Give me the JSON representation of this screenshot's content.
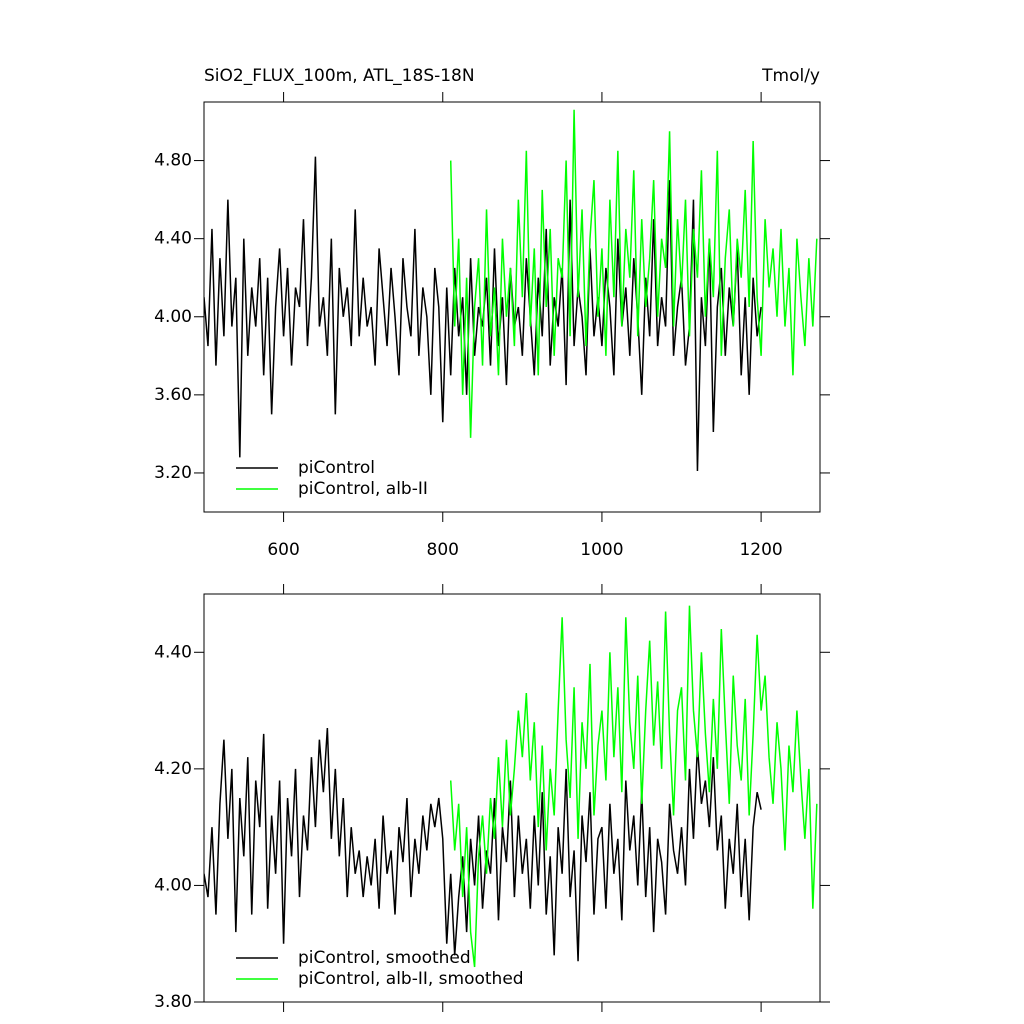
{
  "chart_data": [
    {
      "type": "line",
      "title": "SiO2_FLUX_100m, ATL_18S-18N",
      "unit_label": "Tmol/y",
      "xlim": [
        500,
        1274
      ],
      "ylim": [
        3.0,
        5.1
      ],
      "xticks": [
        600,
        800,
        1000,
        1200
      ],
      "yticks": [
        {
          "value": 3.2,
          "label": "3.20"
        },
        {
          "value": 3.6,
          "label": "3.60"
        },
        {
          "value": 4.0,
          "label": "4.00"
        },
        {
          "value": 4.4,
          "label": "4.40"
        },
        {
          "value": 4.8,
          "label": "4.80"
        }
      ],
      "legend": "lower left",
      "x": [
        500,
        505,
        510,
        515,
        520,
        525,
        530,
        535,
        540,
        545,
        550,
        555,
        560,
        565,
        570,
        575,
        580,
        585,
        590,
        595,
        600,
        605,
        610,
        615,
        620,
        625,
        630,
        635,
        640,
        645,
        650,
        655,
        660,
        665,
        670,
        675,
        680,
        685,
        690,
        695,
        700,
        705,
        710,
        715,
        720,
        725,
        730,
        735,
        740,
        745,
        750,
        755,
        760,
        765,
        770,
        775,
        780,
        785,
        790,
        795,
        800,
        805,
        810,
        815,
        820,
        825,
        830,
        835,
        840,
        845,
        850,
        855,
        860,
        865,
        870,
        875,
        880,
        885,
        890,
        895,
        900,
        905,
        910,
        915,
        920,
        925,
        930,
        935,
        940,
        945,
        950,
        955,
        960,
        965,
        970,
        975,
        980,
        985,
        990,
        995,
        1000,
        1005,
        1010,
        1015,
        1020,
        1025,
        1030,
        1035,
        1040,
        1045,
        1050,
        1055,
        1060,
        1065,
        1070,
        1075,
        1080,
        1085,
        1090,
        1095,
        1100,
        1105,
        1110,
        1115,
        1120,
        1125,
        1130,
        1135,
        1140,
        1145,
        1150,
        1155,
        1160,
        1165,
        1170,
        1175,
        1180,
        1185,
        1190,
        1195,
        1200,
        1205,
        1210,
        1215,
        1220,
        1225,
        1230,
        1235,
        1240,
        1245,
        1250,
        1255,
        1260,
        1265,
        1270
      ],
      "series": [
        {
          "name": "piControl",
          "color": "#000000",
          "values": [
            4.1,
            3.85,
            4.45,
            3.75,
            4.3,
            3.9,
            4.6,
            3.95,
            4.2,
            3.28,
            4.4,
            3.8,
            4.15,
            3.95,
            4.3,
            3.7,
            4.2,
            3.5,
            4.05,
            4.35,
            3.9,
            4.25,
            3.75,
            4.15,
            4.05,
            4.5,
            3.85,
            4.2,
            4.82,
            3.95,
            4.1,
            3.8,
            4.4,
            3.5,
            4.25,
            4.0,
            4.15,
            3.85,
            4.55,
            3.9,
            4.2,
            3.95,
            4.05,
            3.75,
            4.35,
            4.1,
            3.85,
            4.25,
            4.0,
            3.7,
            4.3,
            4.05,
            3.9,
            4.45,
            3.8,
            4.15,
            4.0,
            3.6,
            4.25,
            4.05,
            3.46,
            4.15,
            3.7,
            4.25,
            3.9,
            4.1,
            3.6,
            4.3,
            3.8,
            4.05,
            3.95,
            4.2,
            3.75,
            4.35,
            3.85,
            4.1,
            3.65,
            4.25,
            3.95,
            4.05,
            3.8,
            4.3,
            4.0,
            3.7,
            4.2,
            3.9,
            4.45,
            3.75,
            4.1,
            3.95,
            4.25,
            3.65,
            4.6,
            3.85,
            4.15,
            4.0,
            3.7,
            4.35,
            3.9,
            4.1,
            3.85,
            4.25,
            4.05,
            3.7,
            4.4,
            3.95,
            4.15,
            3.8,
            4.3,
            4.0,
            3.6,
            4.2,
            3.9,
            4.5,
            3.85,
            4.1,
            3.95,
            4.7,
            3.8,
            4.05,
            4.2,
            3.75,
            3.95,
            4.6,
            3.21,
            4.1,
            3.85,
            4.4,
            3.41,
            4.05,
            4.25,
            3.8,
            4.15,
            3.95,
            4.35,
            3.7,
            4.1,
            3.6,
            4.2,
            3.9,
            4.05,
            null,
            null,
            null,
            null,
            null,
            null,
            null,
            null,
            null,
            null,
            null,
            null,
            null,
            null
          ]
        },
        {
          "name": "piControl, alb-II",
          "color": "#00ff00",
          "values": [
            null,
            null,
            null,
            null,
            null,
            null,
            null,
            null,
            null,
            null,
            null,
            null,
            null,
            null,
            null,
            null,
            null,
            null,
            null,
            null,
            null,
            null,
            null,
            null,
            null,
            null,
            null,
            null,
            null,
            null,
            null,
            null,
            null,
            null,
            null,
            null,
            null,
            null,
            null,
            null,
            null,
            null,
            null,
            null,
            null,
            null,
            null,
            null,
            null,
            null,
            null,
            null,
            null,
            null,
            null,
            null,
            null,
            null,
            null,
            null,
            null,
            null,
            4.8,
            3.95,
            4.4,
            3.6,
            4.2,
            3.38,
            4.05,
            4.3,
            3.75,
            4.55,
            3.9,
            4.15,
            3.7,
            4.4,
            4.0,
            4.25,
            3.85,
            4.6,
            4.1,
            4.85,
            3.95,
            4.35,
            3.7,
            4.65,
            4.05,
            4.45,
            3.8,
            4.3,
            4.2,
            4.8,
            3.9,
            5.06,
            4.1,
            4.55,
            3.85,
            4.4,
            4.7,
            4.0,
            4.35,
            3.8,
            4.6,
            4.1,
            4.85,
            3.95,
            4.45,
            4.2,
            4.75,
            3.9,
            4.5,
            4.05,
            4.3,
            4.7,
            4.0,
            4.4,
            4.25,
            4.95,
            3.95,
            4.5,
            4.15,
            4.6,
            3.9,
            4.45,
            4.2,
            4.75,
            4.0,
            4.4,
            4.1,
            4.85,
            3.8,
            4.3,
            4.55,
            3.95,
            4.4,
            4.2,
            4.65,
            4.05,
            4.9,
            4.1,
            3.8,
            4.5,
            4.15,
            4.35,
            4.0,
            4.45,
            3.95,
            4.25,
            3.7,
            4.4,
            4.1,
            3.85,
            4.3,
            3.95,
            4.4
          ]
        }
      ]
    },
    {
      "type": "line",
      "xlim": [
        500,
        1274
      ],
      "ylim": [
        3.8,
        4.5
      ],
      "xticks": [
        600,
        800,
        1000,
        1200
      ],
      "yticks": [
        {
          "value": 3.8,
          "label": "3.80"
        },
        {
          "value": 4.0,
          "label": "4.00"
        },
        {
          "value": 4.2,
          "label": "4.20"
        },
        {
          "value": 4.4,
          "label": "4.40"
        }
      ],
      "legend": "lower left",
      "x": [
        500,
        505,
        510,
        515,
        520,
        525,
        530,
        535,
        540,
        545,
        550,
        555,
        560,
        565,
        570,
        575,
        580,
        585,
        590,
        595,
        600,
        605,
        610,
        615,
        620,
        625,
        630,
        635,
        640,
        645,
        650,
        655,
        660,
        665,
        670,
        675,
        680,
        685,
        690,
        695,
        700,
        705,
        710,
        715,
        720,
        725,
        730,
        735,
        740,
        745,
        750,
        755,
        760,
        765,
        770,
        775,
        780,
        785,
        790,
        795,
        800,
        805,
        810,
        815,
        820,
        825,
        830,
        835,
        840,
        845,
        850,
        855,
        860,
        865,
        870,
        875,
        880,
        885,
        890,
        895,
        900,
        905,
        910,
        915,
        920,
        925,
        930,
        935,
        940,
        945,
        950,
        955,
        960,
        965,
        970,
        975,
        980,
        985,
        990,
        995,
        1000,
        1005,
        1010,
        1015,
        1020,
        1025,
        1030,
        1035,
        1040,
        1045,
        1050,
        1055,
        1060,
        1065,
        1070,
        1075,
        1080,
        1085,
        1090,
        1095,
        1100,
        1105,
        1110,
        1115,
        1120,
        1125,
        1130,
        1135,
        1140,
        1145,
        1150,
        1155,
        1160,
        1165,
        1170,
        1175,
        1180,
        1185,
        1190,
        1195,
        1200,
        1205,
        1210,
        1215,
        1220,
        1225,
        1230,
        1235,
        1240,
        1245,
        1250,
        1255,
        1260,
        1265,
        1270
      ],
      "series": [
        {
          "name": "piControl, smoothed",
          "color": "#000000",
          "values": [
            4.02,
            3.98,
            4.1,
            3.95,
            4.14,
            4.25,
            4.08,
            4.2,
            3.92,
            4.15,
            4.05,
            4.22,
            3.95,
            4.18,
            4.1,
            4.26,
            3.96,
            4.12,
            4.02,
            4.18,
            3.9,
            4.15,
            4.05,
            4.2,
            3.98,
            4.12,
            4.06,
            4.22,
            4.1,
            4.25,
            4.16,
            4.27,
            4.08,
            4.2,
            4.05,
            4.15,
            3.98,
            4.1,
            4.02,
            4.06,
            3.98,
            4.05,
            4.0,
            4.08,
            3.96,
            4.12,
            4.02,
            4.06,
            3.95,
            4.1,
            4.04,
            4.15,
            3.98,
            4.08,
            4.02,
            4.12,
            4.06,
            4.14,
            4.1,
            4.15,
            4.08,
            3.9,
            4.02,
            3.88,
            3.98,
            4.05,
            3.92,
            4.08,
            4.0,
            4.12,
            3.96,
            4.06,
            4.02,
            4.15,
            3.94,
            4.1,
            4.04,
            4.18,
            3.98,
            4.12,
            4.02,
            4.08,
            3.96,
            4.12,
            4.0,
            4.16,
            3.95,
            4.05,
            3.88,
            4.1,
            4.02,
            4.2,
            3.98,
            4.06,
            3.87,
            4.12,
            4.04,
            4.16,
            3.95,
            4.08,
            4.1,
            3.96,
            4.14,
            4.02,
            4.08,
            3.94,
            4.18,
            4.06,
            4.12,
            4.0,
            4.16,
            3.98,
            4.1,
            3.92,
            4.08,
            4.04,
            3.95,
            4.14,
            4.06,
            4.02,
            4.1,
            4.0,
            4.2,
            4.08,
            4.24,
            4.14,
            4.18,
            4.1,
            4.22,
            4.06,
            4.12,
            3.96,
            4.08,
            4.02,
            4.14,
            3.98,
            4.08,
            3.94,
            4.1,
            4.16,
            4.13,
            null,
            null,
            null,
            null,
            null,
            null,
            null,
            null,
            null,
            null,
            null,
            null,
            null,
            null
          ]
        },
        {
          "name": "piControl, alb-II, smoothed",
          "color": "#00ff00",
          "values": [
            null,
            null,
            null,
            null,
            null,
            null,
            null,
            null,
            null,
            null,
            null,
            null,
            null,
            null,
            null,
            null,
            null,
            null,
            null,
            null,
            null,
            null,
            null,
            null,
            null,
            null,
            null,
            null,
            null,
            null,
            null,
            null,
            null,
            null,
            null,
            null,
            null,
            null,
            null,
            null,
            null,
            null,
            null,
            null,
            null,
            null,
            null,
            null,
            null,
            null,
            null,
            null,
            null,
            null,
            null,
            null,
            null,
            null,
            null,
            null,
            null,
            null,
            4.18,
            4.06,
            4.14,
            3.98,
            4.1,
            3.92,
            3.86,
            4.05,
            4.12,
            4.02,
            4.15,
            4.08,
            4.22,
            4.1,
            4.25,
            4.12,
            4.2,
            4.3,
            4.22,
            4.33,
            4.18,
            4.28,
            4.1,
            4.24,
            4.06,
            4.2,
            4.12,
            4.3,
            4.46,
            4.25,
            4.15,
            4.34,
            4.08,
            4.28,
            4.2,
            4.38,
            4.12,
            4.24,
            4.3,
            4.18,
            4.4,
            4.22,
            4.34,
            4.16,
            4.46,
            4.28,
            4.2,
            4.36,
            4.14,
            4.3,
            4.42,
            4.24,
            4.35,
            4.2,
            4.47,
            4.26,
            4.12,
            4.3,
            4.34,
            4.18,
            4.48,
            4.3,
            4.22,
            4.4,
            4.26,
            4.16,
            4.32,
            4.2,
            4.44,
            4.28,
            4.14,
            4.36,
            4.24,
            4.18,
            4.32,
            4.12,
            4.26,
            4.43,
            4.3,
            4.36,
            4.22,
            4.14,
            4.28,
            4.2,
            4.06,
            4.24,
            4.16,
            4.3,
            4.18,
            4.08,
            4.2,
            3.96,
            4.14
          ]
        }
      ]
    }
  ]
}
